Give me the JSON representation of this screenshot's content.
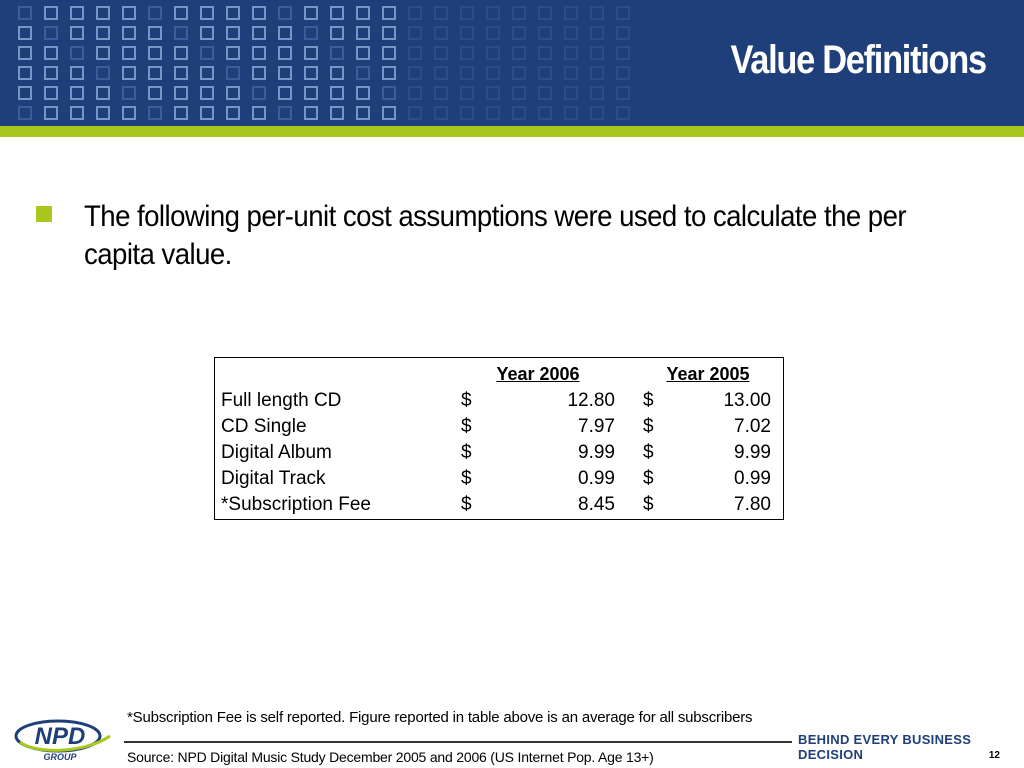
{
  "slide": {
    "title": "Value Definitions",
    "bullet": "The following per-unit cost assumptions were used to calculate the per capita value."
  },
  "table": {
    "headers": [
      "Year 2006",
      "Year 2005"
    ],
    "rows": [
      {
        "label": "Full length CD",
        "c1": "$",
        "v1": "12.80",
        "c2": "$",
        "v2": "13.00"
      },
      {
        "label": "CD Single",
        "c1": "$",
        "v1": "7.97",
        "c2": "$",
        "v2": "7.02"
      },
      {
        "label": "Digital Album",
        "c1": "$",
        "v1": "9.99",
        "c2": "$",
        "v2": "9.99"
      },
      {
        "label": "Digital Track",
        "c1": "$",
        "v1": "0.99",
        "c2": "$",
        "v2": "0.99"
      },
      {
        "label": "*Subscription Fee",
        "c1": "$",
        "v1": "8.45",
        "c2": "$",
        "v2": "7.80"
      }
    ]
  },
  "footer": {
    "footnote": "*Subscription Fee is self reported.  Figure reported in table above is an average for all subscribers",
    "source": "Source:  NPD Digital Music Study December 2005 and 2006 (US Internet Pop. Age 13+)",
    "tagline": "BEHIND EVERY BUSINESS DECISION",
    "page_number": "12",
    "logo_text": "NPD",
    "logo_subtext": "GROUP"
  },
  "colors": {
    "header_blue": "#1e3f7a",
    "accent_green": "#a8c81d"
  }
}
